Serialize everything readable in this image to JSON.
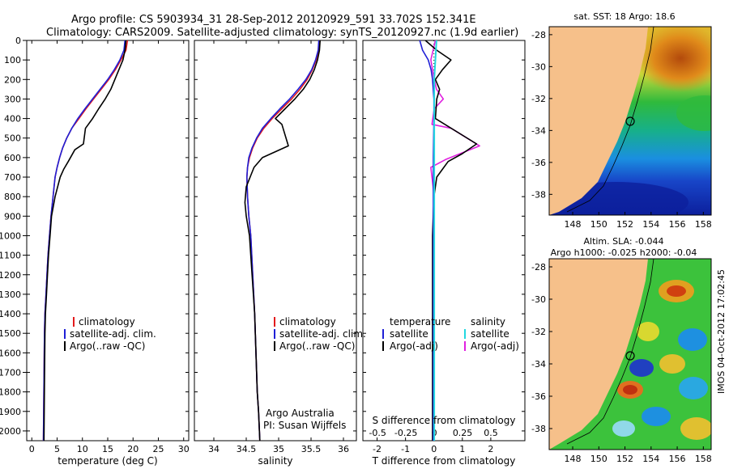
{
  "header": {
    "line1": "Argo profile: CS 5903934_31 28-Sep-2012 20120929_591 33.702S 152.341E",
    "line2": "Climatology: CARS2009. Satellite-adjusted climatology: synTS_20120927.nc (1.9d earlier)"
  },
  "colors": {
    "climatology": "#e31a1c",
    "satellite": "#1f1fd6",
    "argo": "#000000",
    "sal_satellite": "#22d8e0",
    "sal_argo": "#e020e0",
    "land": "#f6c08a"
  },
  "depth_ticks": [
    0,
    100,
    200,
    300,
    400,
    500,
    600,
    700,
    800,
    900,
    1000,
    1100,
    1200,
    1300,
    1400,
    1500,
    1600,
    1700,
    1800,
    1900,
    2000
  ],
  "temp_panel": {
    "xlabel": "temperature (deg C)",
    "xticks": [
      0,
      5,
      10,
      15,
      20,
      25,
      30
    ],
    "legend": [
      "climatology",
      "satellite-adj. clim.",
      "Argo(..raw -QC)"
    ]
  },
  "sal_panel": {
    "xlabel": "salinity",
    "xticks": [
      "34",
      "34.5",
      "35",
      "35.5",
      "36"
    ],
    "legend": [
      "climatology",
      "satellite-adj. clim.",
      "Argo(..raw -QC)"
    ],
    "credit_line1": "Argo Australia",
    "credit_line2": "PI: Susan Wijffels"
  },
  "diff_panel": {
    "xlabel_bottom": "T difference from climatology",
    "xlabel_top": "S difference from climatology",
    "t_ticks": [
      "-2",
      "-1",
      "0",
      "1",
      "2"
    ],
    "s_ticks": [
      "-0.5",
      "-0.25",
      "0",
      "0.25",
      "0.5"
    ],
    "legend_temp_title": "temperature",
    "legend_temp": [
      "satellite",
      "Argo(-adj)"
    ],
    "legend_sal_title": "salinity",
    "legend_sal": [
      "satellite",
      "Argo(-adj)"
    ]
  },
  "map_sst": {
    "title": "sat. SST: 18 Argo: 18.6",
    "lat_ticks": [
      "-28",
      "-30",
      "-32",
      "-34",
      "-36",
      "-38"
    ],
    "lon_ticks": [
      "148",
      "150",
      "152",
      "154",
      "156",
      "158"
    ]
  },
  "map_sla": {
    "title1": "Altim. SLA: -0.044",
    "title2": "Argo h1000: -0.025 h2000: -0.04",
    "lat_ticks": [
      "-28",
      "-30",
      "-32",
      "-34",
      "-36",
      "-38"
    ],
    "lon_ticks": [
      "148",
      "150",
      "152",
      "154",
      "156",
      "158"
    ]
  },
  "side_stamp": "IMOS 04-Oct-2012 17:02:45",
  "chart_data": [
    {
      "type": "line",
      "xlabel": "temperature (deg C)",
      "xlim": [
        -1,
        31
      ],
      "ylim": [
        0,
        2050
      ],
      "series": [
        {
          "name": "climatology",
          "x": [
            18.9,
            18.6,
            17.6,
            16.5,
            15.2,
            13.7,
            12.2,
            10.7,
            9.3,
            7.9,
            6.9,
            6.1,
            5.5,
            5.0,
            4.6,
            4.2,
            3.8,
            3.5,
            3.2,
            3.0,
            2.8,
            2.6,
            2.5,
            2.4,
            2.3
          ],
          "y": [
            0,
            50,
            100,
            150,
            200,
            250,
            300,
            350,
            400,
            450,
            500,
            550,
            600,
            650,
            700,
            800,
            900,
            1000,
            1100,
            1200,
            1300,
            1400,
            1500,
            1750,
            2050
          ]
        },
        {
          "name": "satellite-adj. clim.",
          "x": [
            18.4,
            18.2,
            17.4,
            16.3,
            15.0,
            13.5,
            12.0,
            10.5,
            9.1,
            7.9,
            6.9,
            6.1,
            5.5,
            5.0,
            4.6,
            4.2,
            3.8,
            3.5,
            3.2,
            3.0,
            2.8,
            2.6,
            2.5,
            2.4,
            2.3
          ],
          "y": [
            0,
            50,
            100,
            150,
            200,
            250,
            300,
            350,
            400,
            450,
            500,
            550,
            600,
            650,
            700,
            800,
            900,
            1000,
            1100,
            1200,
            1300,
            1400,
            1500,
            1750,
            2050
          ]
        },
        {
          "name": "Argo(..raw -QC)",
          "x": [
            18.6,
            18.4,
            18.0,
            17.2,
            16.4,
            15.6,
            14.5,
            13.2,
            12.0,
            10.6,
            10.2,
            8.5,
            7.2,
            6.3,
            5.6,
            4.6,
            3.9,
            3.6,
            3.3,
            3.1,
            2.9,
            2.7,
            2.6,
            2.5,
            2.4
          ],
          "y": [
            0,
            50,
            100,
            150,
            200,
            250,
            300,
            350,
            400,
            450,
            530,
            560,
            620,
            660,
            700,
            800,
            900,
            1000,
            1100,
            1200,
            1300,
            1400,
            1500,
            1750,
            2050
          ]
        }
      ]
    },
    {
      "type": "line",
      "xlabel": "salinity",
      "xlim": [
        33.7,
        36.2
      ],
      "ylim": [
        0,
        2050
      ],
      "series": [
        {
          "name": "climatology",
          "x": [
            35.63,
            35.62,
            35.58,
            35.52,
            35.44,
            35.33,
            35.2,
            35.05,
            34.9,
            34.77,
            34.67,
            34.6,
            34.55,
            34.52,
            34.51,
            34.52,
            34.54,
            34.57,
            34.6,
            34.63,
            34.65,
            34.67,
            34.69,
            34.71
          ],
          "y": [
            0,
            50,
            100,
            150,
            200,
            250,
            300,
            350,
            400,
            450,
            500,
            550,
            600,
            650,
            700,
            800,
            900,
            1000,
            1200,
            1400,
            1600,
            1800,
            1900,
            2050
          ]
        },
        {
          "name": "satellite-adj. clim.",
          "x": [
            35.62,
            35.61,
            35.57,
            35.51,
            35.42,
            35.3,
            35.17,
            35.02,
            34.88,
            34.75,
            34.66,
            34.59,
            34.54,
            34.52,
            34.51,
            34.52,
            34.54,
            34.57,
            34.6,
            34.63,
            34.65,
            34.67,
            34.69,
            34.71
          ],
          "y": [
            0,
            50,
            100,
            150,
            200,
            250,
            300,
            350,
            400,
            450,
            500,
            550,
            600,
            650,
            700,
            800,
            900,
            1000,
            1200,
            1400,
            1600,
            1800,
            1900,
            2050
          ]
        },
        {
          "name": "Argo(..raw -QC)",
          "x": [
            35.64,
            35.63,
            35.6,
            35.55,
            35.48,
            35.38,
            35.25,
            35.1,
            34.95,
            35.05,
            35.15,
            34.75,
            34.62,
            34.56,
            34.5,
            34.48,
            34.5,
            34.55,
            34.59,
            34.63,
            34.65,
            34.67,
            34.69,
            34.71
          ],
          "y": [
            0,
            50,
            100,
            150,
            200,
            250,
            300,
            350,
            400,
            430,
            540,
            600,
            650,
            700,
            750,
            830,
            900,
            1000,
            1200,
            1400,
            1600,
            1800,
            1900,
            2050
          ]
        }
      ]
    },
    {
      "type": "line",
      "xlabel": "T difference from climatology",
      "xlim": [
        -2.5,
        3.2
      ],
      "ylim": [
        0,
        2050
      ],
      "series": [
        {
          "name": "satellite",
          "x": [
            -0.5,
            -0.4,
            -0.2,
            -0.1,
            -0.05,
            0.0,
            0.0,
            -0.02,
            -0.02,
            -0.02,
            -0.02,
            -0.02
          ],
          "y": [
            0,
            50,
            100,
            150,
            200,
            300,
            400,
            600,
            800,
            1200,
            1600,
            2050
          ]
        },
        {
          "name": "Argo(-adj)",
          "x": [
            -0.3,
            0.1,
            0.6,
            0.3,
            0.05,
            0.2,
            0.1,
            0.05,
            1.5,
            1.0,
            0.5,
            0.3,
            0.1,
            0.0,
            -0.05,
            -0.05,
            -0.05,
            -0.05
          ],
          "y": [
            0,
            50,
            100,
            150,
            200,
            250,
            300,
            400,
            530,
            580,
            620,
            660,
            700,
            800,
            1000,
            1400,
            1800,
            2050
          ]
        }
      ]
    },
    {
      "type": "line",
      "xlabel": "S difference from climatology",
      "xlim": [
        -0.63,
        0.8
      ],
      "ylim": [
        0,
        2050
      ],
      "series": [
        {
          "name": "satellite",
          "x": [
            0.02,
            0.01,
            0.0,
            0.0,
            0.0,
            0.0,
            0.0,
            0.0,
            0.0,
            0.0
          ],
          "y": [
            0,
            100,
            200,
            400,
            600,
            800,
            1000,
            1400,
            1800,
            2050
          ]
        },
        {
          "name": "Argo(-adj)",
          "x": [
            0.01,
            -0.03,
            0.0,
            0.02,
            0.08,
            0.0,
            -0.02,
            0.15,
            0.4,
            0.1,
            -0.03,
            -0.02,
            0.0,
            0.0,
            0.0
          ],
          "y": [
            0,
            100,
            200,
            250,
            300,
            350,
            430,
            450,
            540,
            610,
            650,
            700,
            800,
            1400,
            2050
          ]
        }
      ]
    }
  ]
}
